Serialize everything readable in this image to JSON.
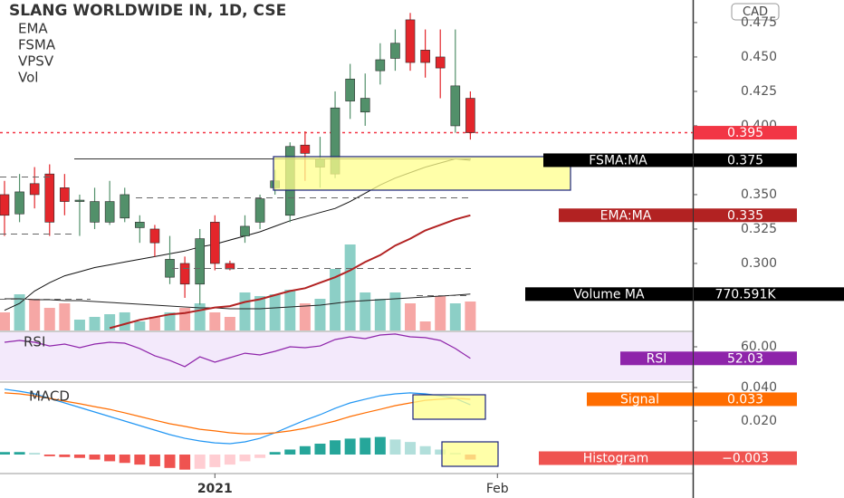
{
  "chart_data": {
    "type": "candlestick",
    "title": "SLANG WORLDWIDE IN, 1D, CSE",
    "indicators": [
      "EMA",
      "FSMA",
      "VPSV",
      "Vol"
    ],
    "currency": "CAD",
    "x": [
      0,
      1,
      2,
      3,
      4,
      5,
      6,
      7,
      8,
      9,
      10,
      11,
      12,
      13,
      14,
      15,
      16,
      17,
      18,
      19,
      20,
      21,
      22,
      23,
      24,
      25,
      26,
      27,
      28,
      29,
      30,
      31
    ],
    "xlim": [
      -0.3,
      45.8
    ],
    "xticks": [
      {
        "value": 14,
        "label": "2021"
      },
      {
        "value": 32.8,
        "label": "Feb"
      }
    ],
    "open": [
      0.35,
      0.336,
      0.358,
      0.365,
      0.355,
      0.345,
      0.33,
      0.33,
      0.333,
      0.326,
      0.325,
      0.29,
      0.3,
      0.285,
      0.33,
      0.3,
      0.32,
      0.33,
      0.355,
      0.335,
      0.386,
      0.37,
      0.365,
      0.418,
      0.41,
      0.44,
      0.449,
      0.477,
      0.455,
      0.45,
      0.4,
      0.42
    ],
    "close": [
      0.335,
      0.352,
      0.35,
      0.33,
      0.345,
      0.346,
      0.345,
      0.345,
      0.35,
      0.33,
      0.315,
      0.303,
      0.285,
      0.318,
      0.3,
      0.296,
      0.327,
      0.347,
      0.36,
      0.385,
      0.38,
      0.376,
      0.413,
      0.434,
      0.42,
      0.448,
      0.46,
      0.446,
      0.446,
      0.442,
      0.429,
      0.395
    ],
    "high": [
      0.36,
      0.365,
      0.37,
      0.372,
      0.365,
      0.35,
      0.355,
      0.36,
      0.355,
      0.335,
      0.328,
      0.32,
      0.305,
      0.325,
      0.335,
      0.302,
      0.335,
      0.35,
      0.368,
      0.388,
      0.396,
      0.392,
      0.425,
      0.445,
      0.438,
      0.46,
      0.47,
      0.482,
      0.47,
      0.47,
      0.47,
      0.425
    ],
    "low": [
      0.32,
      0.33,
      0.34,
      0.32,
      0.335,
      0.32,
      0.325,
      0.328,
      0.33,
      0.315,
      0.305,
      0.285,
      0.275,
      0.27,
      0.295,
      0.295,
      0.315,
      0.325,
      0.35,
      0.33,
      0.36,
      0.355,
      0.362,
      0.405,
      0.4,
      0.43,
      0.44,
      0.44,
      0.435,
      0.42,
      0.395,
      0.39
    ],
    "up_color": "#52906a",
    "down_color": "#e3262b",
    "ylim": [
      0.2513,
      0.4914
    ],
    "yticks": [
      {
        "value": 0.3,
        "label": "0.300"
      },
      {
        "value": 0.325,
        "label": "0.325"
      },
      {
        "value": 0.35,
        "label": "0.350"
      },
      {
        "value": 0.375,
        "label": "0.375"
      },
      {
        "value": 0.4,
        "label": "0.400"
      },
      {
        "value": 0.425,
        "label": "0.425"
      },
      {
        "value": 0.45,
        "label": "0.450"
      },
      {
        "value": 0.475,
        "label": "0.475"
      }
    ],
    "price_line": {
      "value": 0.395,
      "color": "#f23645"
    },
    "overlays": [
      {
        "name": "FSMA:MA",
        "color": "#111111",
        "last": 0.375,
        "values": [
          0.266,
          0.271,
          0.28,
          0.286,
          0.291,
          0.294,
          0.297,
          0.299,
          0.301,
          0.303,
          0.305,
          0.307,
          0.309,
          0.312,
          0.314,
          0.317,
          0.32,
          0.323,
          0.327,
          0.331,
          0.334,
          0.337,
          0.34,
          0.345,
          0.351,
          0.357,
          0.362,
          0.366,
          0.37,
          0.373,
          0.376,
          0.375
        ]
      },
      {
        "name": "EMA:MA",
        "color": "#b22222",
        "last": 0.335,
        "values": [
          null,
          null,
          null,
          null,
          null,
          null,
          null,
          0.253,
          0.256,
          0.259,
          0.261,
          0.263,
          0.264,
          0.266,
          0.268,
          0.269,
          0.272,
          0.274,
          0.277,
          0.28,
          0.282,
          0.286,
          0.29,
          0.295,
          0.301,
          0.306,
          0.313,
          0.318,
          0.324,
          0.328,
          0.332,
          0.335
        ]
      }
    ],
    "volume": {
      "ylim": [
        0,
        7000000
      ],
      "up_color": "#8ccfc6",
      "down_color": "#f6a7a5",
      "values": [
        384000,
        767000,
        671000,
        479000,
        575000,
        230000,
        288000,
        345000,
        384000,
        192000,
        288000,
        384000,
        479000,
        575000,
        384000,
        288000,
        806000,
        729000,
        767000,
        863000,
        575000,
        671000,
        1304000,
        1822000,
        806000,
        671000,
        806000,
        575000,
        192000,
        729000,
        575000,
        614000
      ],
      "ma_name": "Volume MA",
      "ma_color": "#222222",
      "ma": [
        671000,
        671000,
        652000,
        652000,
        633000,
        633000,
        614000,
        595000,
        575000,
        556000,
        537000,
        518000,
        499000,
        479000,
        479000,
        460000,
        460000,
        460000,
        479000,
        499000,
        518000,
        537000,
        575000,
        614000,
        633000,
        652000,
        671000,
        690000,
        710000,
        729000,
        748000,
        770591
      ],
      "ma_last": {
        "value": 770591,
        "label": "770.591K"
      }
    },
    "rsi": {
      "name": "RSI",
      "color": "#8e24aa",
      "ylim": [
        36.9,
        70
      ],
      "yticks": [
        {
          "value": 60,
          "label": "60.00"
        }
      ],
      "values": [
        63.1,
        64.4,
        63.1,
        60.6,
        61.9,
        59.4,
        61.9,
        63.1,
        62.5,
        58.8,
        53.8,
        50.6,
        46.3,
        53.1,
        49.4,
        52.5,
        55.6,
        54.4,
        56.9,
        60,
        59.4,
        60.6,
        65,
        66.9,
        65.6,
        68.1,
        68.8,
        66.9,
        66.3,
        64.4,
        58.8,
        52.03
      ],
      "last": 52.03
    },
    "macd": {
      "name": "MACD",
      "ylim": [
        -0.0108,
        0.0427
      ],
      "yticks": [
        {
          "value": 0.04,
          "label": "0.040"
        },
        {
          "value": 0.02,
          "label": "0.020"
        }
      ],
      "macd_color": "#2196f3",
      "macd": [
        0.039,
        0.0378,
        0.0362,
        0.0335,
        0.0308,
        0.0281,
        0.0254,
        0.0227,
        0.02,
        0.0173,
        0.0146,
        0.0119,
        0.0097,
        0.0081,
        0.007,
        0.0065,
        0.0076,
        0.0097,
        0.013,
        0.0168,
        0.0205,
        0.0238,
        0.0276,
        0.0308,
        0.033,
        0.0351,
        0.0362,
        0.0368,
        0.0362,
        0.0351,
        0.0335,
        0.0297
      ],
      "signal_name": "Signal",
      "signal_color": "#ff6d00",
      "signal": [
        0.0368,
        0.0362,
        0.0351,
        0.0335,
        0.0319,
        0.0303,
        0.0286,
        0.027,
        0.0249,
        0.0227,
        0.0205,
        0.0184,
        0.0168,
        0.0151,
        0.0141,
        0.013,
        0.0124,
        0.0124,
        0.013,
        0.0141,
        0.0157,
        0.0178,
        0.02,
        0.0227,
        0.0249,
        0.027,
        0.0292,
        0.0308,
        0.0324,
        0.033,
        0.0335,
        0.033
      ],
      "signal_last": 0.033,
      "histogram_name": "Histogram",
      "histogram_colors": [
        "#26a69a",
        "#b2dfdb",
        "#ffcdd2",
        "#ef5350"
      ],
      "histogram": [
        0.0015,
        0.0015,
        0.001,
        -0.001,
        -0.0015,
        -0.002,
        -0.003,
        -0.004,
        -0.005,
        -0.006,
        -0.007,
        -0.008,
        -0.009,
        -0.0085,
        -0.0075,
        -0.006,
        -0.004,
        -0.002,
        0.0015,
        0.003,
        0.005,
        0.0065,
        0.0085,
        0.0095,
        0.01,
        0.0105,
        0.009,
        0.0075,
        0.005,
        0.003,
        0.001,
        -0.003
      ],
      "histogram_last": {
        "value": -0.003,
        "label": "−0.003"
      }
    }
  }
}
